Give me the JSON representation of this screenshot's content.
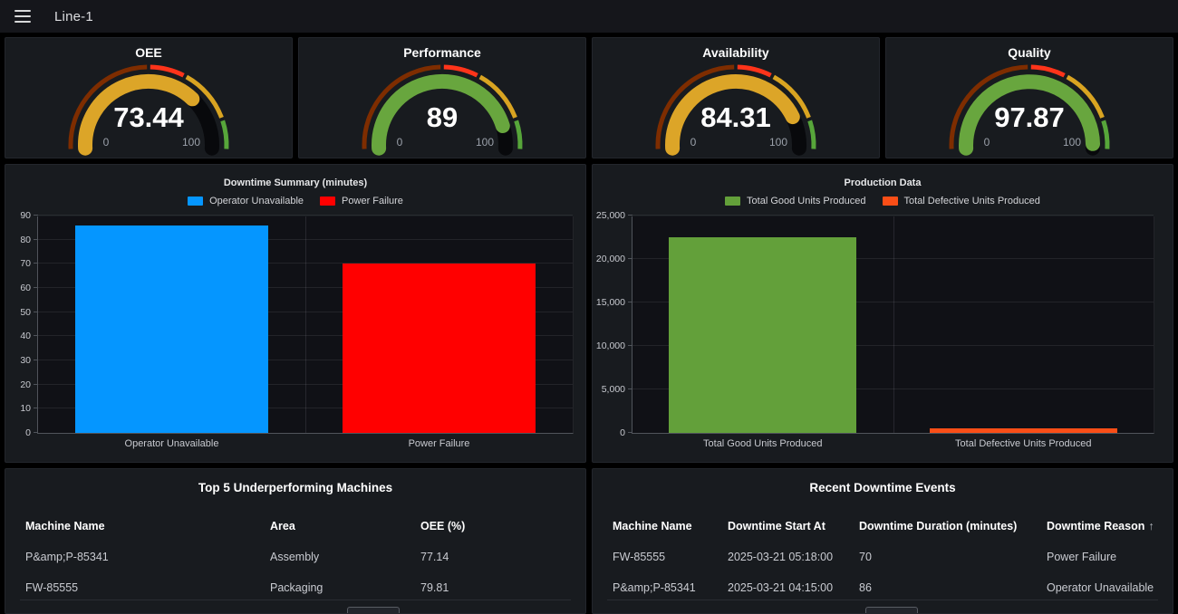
{
  "topbar": {
    "title": "Line-1"
  },
  "icons": {
    "menu": "hamburger-icon",
    "sort_ascending": "↑"
  },
  "theme": {
    "page_bg": "#000000",
    "panel_bg": "#181B1F",
    "topbar_bg": "#15161B",
    "text": "#D8D9DA",
    "muted_text": "#9AA0A9"
  },
  "gauges": {
    "min_label": "0",
    "max_label": "100",
    "thresholds": [
      {
        "to": 50,
        "color": "#7E2D00"
      },
      {
        "to": 65,
        "color": "#FF341A"
      },
      {
        "to": 88,
        "color": "#D9A421"
      },
      {
        "to": 100,
        "color": "#57A63A"
      }
    ],
    "remainder_color": "#08090C",
    "items": [
      {
        "title": "OEE",
        "display": "73.44",
        "value": 73.44,
        "color": "#DCA528"
      },
      {
        "title": "Performance",
        "display": "89",
        "value": 89,
        "color": "#68A63E"
      },
      {
        "title": "Availability",
        "display": "84.31",
        "value": 84.31,
        "color": "#DCA528"
      },
      {
        "title": "Quality",
        "display": "97.87",
        "value": 97.87,
        "color": "#68A63E"
      }
    ]
  },
  "chart_data": [
    {
      "type": "bar",
      "title": "Downtime Summary (minutes)",
      "categories": [
        "Operator Unavailable",
        "Power Failure"
      ],
      "values": [
        86,
        70
      ],
      "colors": [
        "#0596FF",
        "#FF0000"
      ],
      "legend": [
        {
          "label": "Operator Unavailable",
          "color": "#0596FF"
        },
        {
          "label": "Power Failure",
          "color": "#FF0000"
        }
      ],
      "legend_position": "top",
      "grid": true,
      "xlabel": "",
      "ylabel": "",
      "ylim": [
        0,
        90
      ],
      "yticks": [
        {
          "v": 0,
          "label": "0"
        },
        {
          "v": 10,
          "label": "10"
        },
        {
          "v": 20,
          "label": "20"
        },
        {
          "v": 30,
          "label": "30"
        },
        {
          "v": 40,
          "label": "40"
        },
        {
          "v": 50,
          "label": "50"
        },
        {
          "v": 60,
          "label": "60"
        },
        {
          "v": 70,
          "label": "70"
        },
        {
          "v": 80,
          "label": "80"
        },
        {
          "v": 90,
          "label": "90"
        }
      ]
    },
    {
      "type": "bar",
      "title": "Production Data",
      "categories": [
        "Total Good Units Produced",
        "Total Defective Units Produced"
      ],
      "values": [
        22500,
        500
      ],
      "colors": [
        "#63A03A",
        "#FA4E17"
      ],
      "legend": [
        {
          "label": "Total Good Units Produced",
          "color": "#63A03A"
        },
        {
          "label": "Total Defective Units Produced",
          "color": "#FA4E17"
        }
      ],
      "legend_position": "top",
      "grid": true,
      "xlabel": "",
      "ylabel": "",
      "ylim": [
        0,
        25000
      ],
      "yticks": [
        {
          "v": 0,
          "label": "0"
        },
        {
          "v": 5000,
          "label": "5,000"
        },
        {
          "v": 10000,
          "label": "10,000"
        },
        {
          "v": 15000,
          "label": "15,000"
        },
        {
          "v": 20000,
          "label": "20,000"
        },
        {
          "v": 25000,
          "label": "25,000"
        }
      ]
    }
  ],
  "tables": [
    {
      "title": "Top 5 Underperforming Machines",
      "columns": [
        {
          "label": "Machine Name"
        },
        {
          "label": "Area"
        },
        {
          "label": "OEE (%)"
        }
      ],
      "rows": [
        [
          "P&amp;P-85341",
          "Assembly",
          "77.14"
        ],
        [
          "FW-85555",
          "Packaging",
          "79.81"
        ]
      ]
    },
    {
      "title": "Recent Downtime Events",
      "columns": [
        {
          "label": "Machine Name"
        },
        {
          "label": "Downtime Start At"
        },
        {
          "label": "Downtime Duration (minutes)"
        },
        {
          "label": "Downtime Reason",
          "sort": "asc",
          "sort_icon": "↑"
        }
      ],
      "rows": [
        [
          "FW-85555",
          "2025-03-21 05:18:00",
          "70",
          "Power Failure"
        ],
        [
          "P&amp;P-85341",
          "2025-03-21 04:15:00",
          "86",
          "Operator Unavailable"
        ]
      ]
    }
  ]
}
